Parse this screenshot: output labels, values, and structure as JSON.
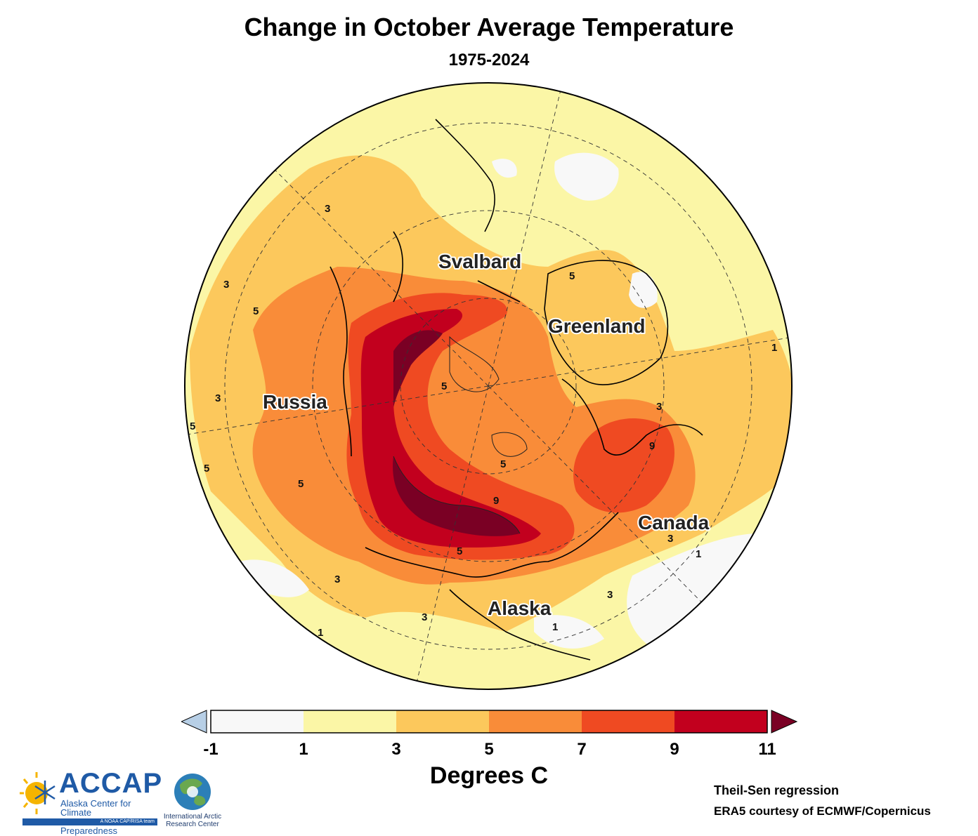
{
  "title": "Change in October Average Temperature",
  "subtitle": "1975-2024",
  "map": {
    "region_labels": [
      "Svalbard",
      "Greenland",
      "Russia",
      "Canada",
      "Alaska"
    ],
    "contour_labels": [
      "3",
      "3",
      "5",
      "5",
      "5",
      "5",
      "5",
      "5",
      "9",
      "9",
      "5",
      "3",
      "3",
      "3",
      "3",
      "5",
      "3",
      "1",
      "1",
      "1",
      "1",
      "3"
    ]
  },
  "colorbar": {
    "label": "Degrees C",
    "ticks": [
      "-1",
      "1",
      "3",
      "5",
      "7",
      "9",
      "11"
    ],
    "colors": {
      "under": "#b7cfe6",
      "bins": [
        "#f8f8f8",
        "#fbf6a6",
        "#fcc85c",
        "#f98c39",
        "#ef4a22",
        "#c2001e"
      ],
      "over": "#7a0024"
    }
  },
  "credits": {
    "method": "Theil-Sen regression",
    "source": "ERA5 courtesy of ECMWF/Copernicus"
  },
  "logos": {
    "accap_name": "ACCAP",
    "accap_line1": "Alaska Center for Climate",
    "accap_line2": "Assessment and Preparedness",
    "accap_tag": "A NOAA CAP/RISA team",
    "iarc_line1": "International Arctic",
    "iarc_line2": "Research Center"
  }
}
